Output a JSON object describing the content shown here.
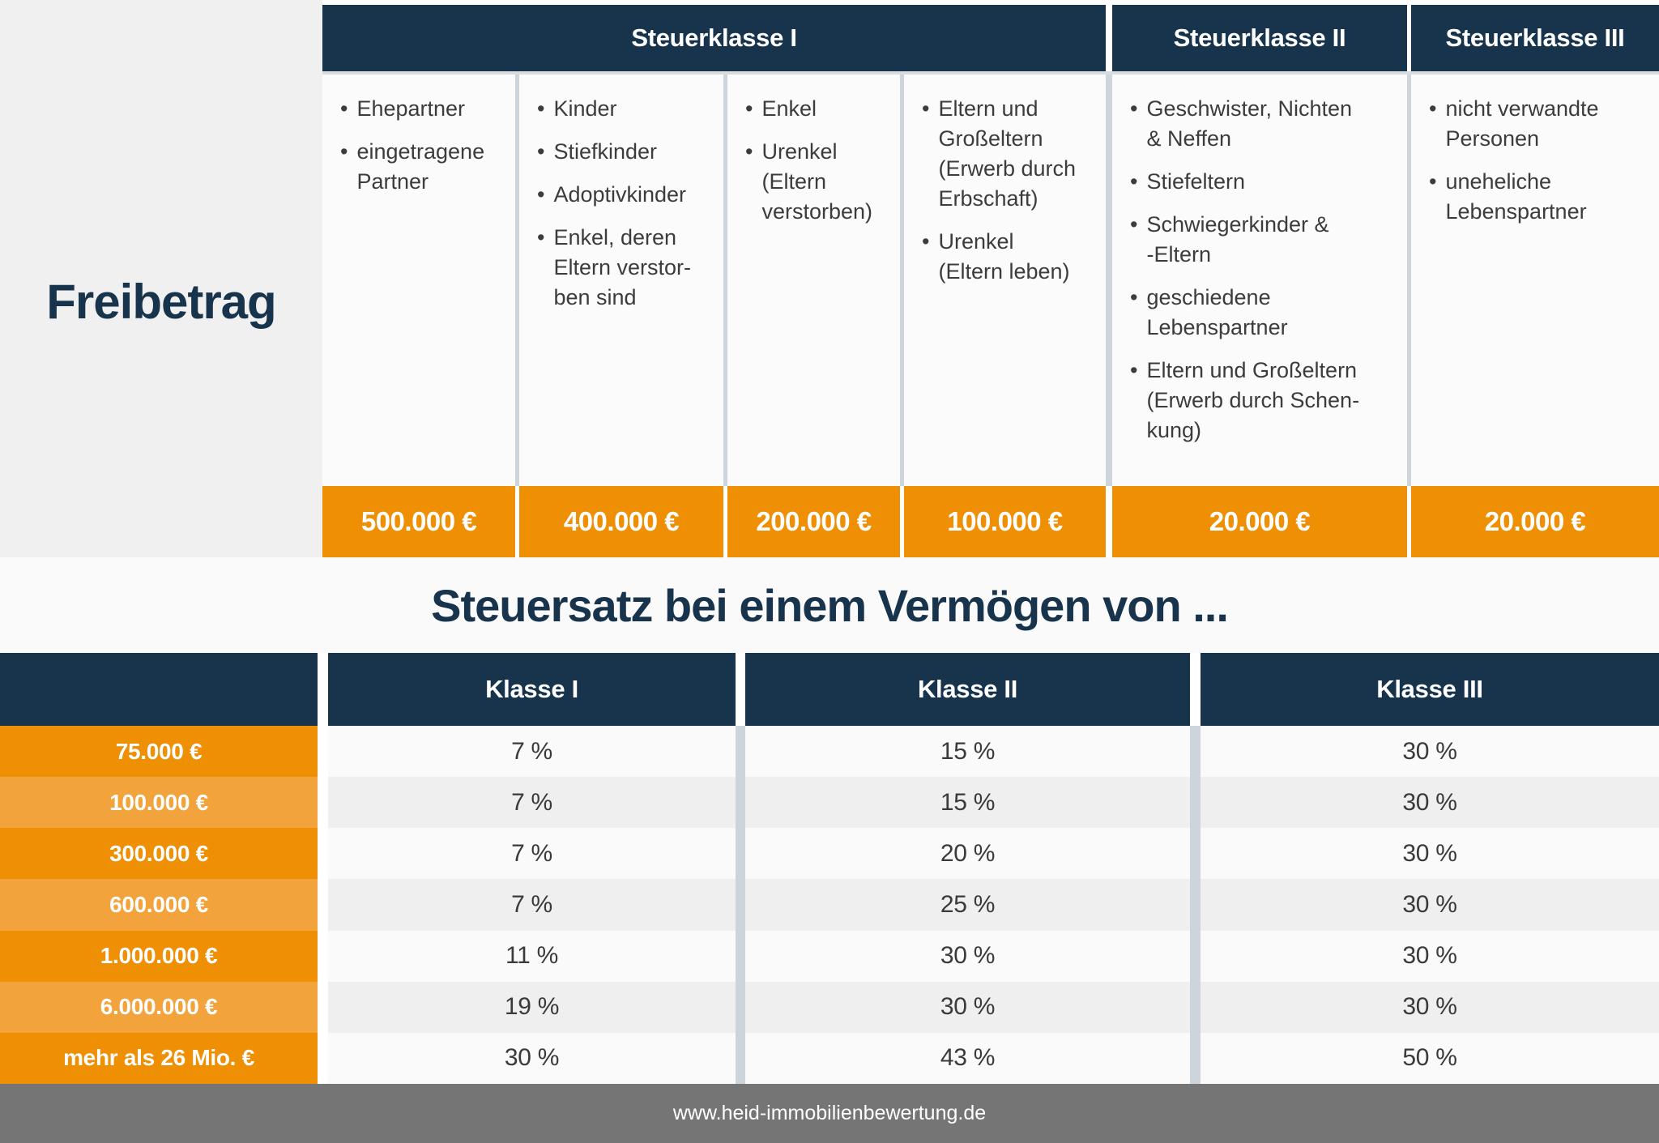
{
  "left_panel": {
    "label": "Freibetrag"
  },
  "top_table": {
    "headers": [
      {
        "label": "Steuerklasse I"
      },
      {
        "label": "Steuerklasse II"
      },
      {
        "label": "Steuerklasse III"
      }
    ],
    "columns": [
      {
        "items": [
          "Ehepartner",
          "eingetragene\nPartner"
        ]
      },
      {
        "items": [
          "Kinder",
          "Stiefkinder",
          "Adoptivkinder",
          "Enkel, deren\nEltern verstor-\nben sind"
        ]
      },
      {
        "items": [
          "Enkel",
          "Urenkel\n(Eltern\nverstorben)"
        ]
      },
      {
        "items": [
          "Eltern und\nGroßeltern\n(Erwerb durch\nErbschaft)",
          "Urenkel\n(Eltern leben)"
        ]
      },
      {
        "items": [
          "Geschwister, Nichten\n& Neffen",
          "Stiefeltern",
          "Schwiegerkinder &\n-Eltern",
          "geschiedene\nLebenspartner",
          "Eltern und Großeltern\n(Erwerb durch Schen-\nkung)"
        ]
      },
      {
        "items": [
          "nicht verwandte\nPersonen",
          "uneheliche\nLebenspartner"
        ]
      }
    ],
    "allowances": [
      "500.000 €",
      "400.000 €",
      "200.000 €",
      "100.000 €",
      "20.000 €",
      "20.000 €"
    ]
  },
  "middle": {
    "title": "Steuersatz bei einem Vermögen von ..."
  },
  "bottom_table": {
    "col_headers": [
      "Klasse I",
      "Klasse II",
      "Klasse III"
    ],
    "rows": [
      {
        "label": "75.000 €",
        "klasse1": "7 %",
        "klasse2": "15 %",
        "klasse3": "30 %"
      },
      {
        "label": "100.000 €",
        "klasse1": "7 %",
        "klasse2": "15 %",
        "klasse3": "30 %"
      },
      {
        "label": "300.000 €",
        "klasse1": "7 %",
        "klasse2": "20 %",
        "klasse3": "30 %"
      },
      {
        "label": "600.000 €",
        "klasse1": "7 %",
        "klasse2": "25 %",
        "klasse3": "30 %"
      },
      {
        "label": "1.000.000 €",
        "klasse1": "11 %",
        "klasse2": "30 %",
        "klasse3": "30 %"
      },
      {
        "label": "6.000.000 €",
        "klasse1": "19 %",
        "klasse2": "30 %",
        "klasse3": "30 %"
      },
      {
        "label": "mehr als 26 Mio. €",
        "klasse1": "30 %",
        "klasse2": "43 %",
        "klasse3": "50 %"
      }
    ]
  },
  "footer": {
    "url": "www.heid-immobilienbewertung.de"
  },
  "colors": {
    "navy": "#18344D",
    "orange": "#EE8F04",
    "orange_light": "#F2A33C",
    "panel_gray": "#F0F0F0",
    "row_light": "#FAFAFA",
    "row_alt": "#EFEFEF",
    "divider": "#CDD4DB",
    "footer_gray": "#757575",
    "text_dark": "#3C3C3C",
    "white": "#FFFFFF"
  }
}
